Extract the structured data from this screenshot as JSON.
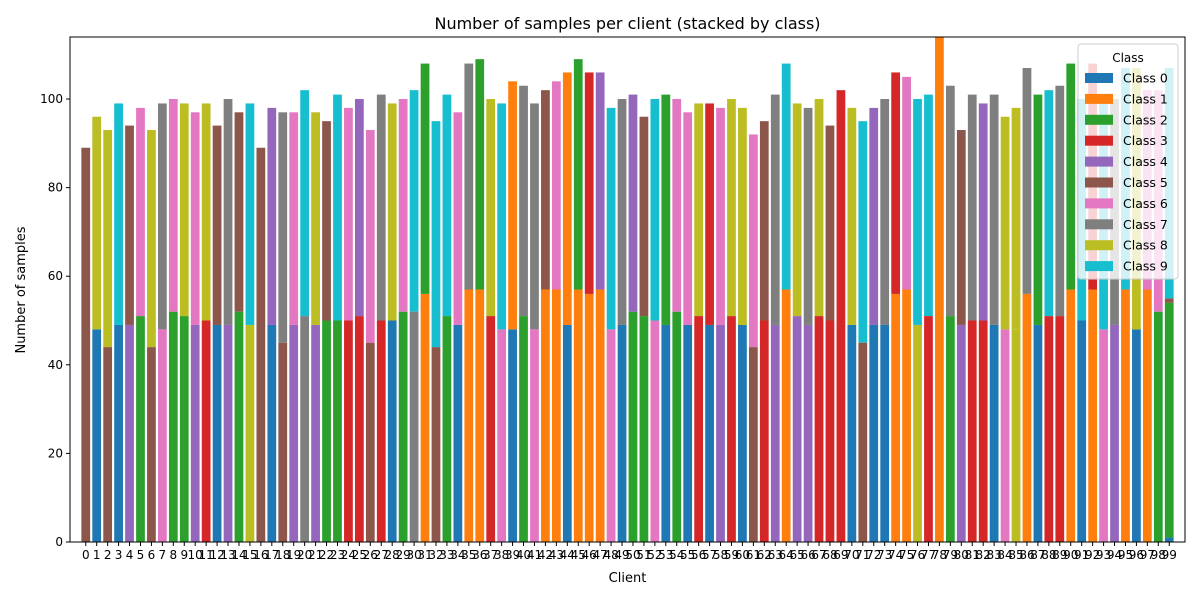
{
  "chart_data": {
    "type": "bar",
    "stacked": true,
    "title": "Number of samples per client (stacked by class)",
    "xlabel": "Client",
    "ylabel": "Number of samples",
    "ylim": [
      0,
      114
    ],
    "yticks": [
      0,
      20,
      40,
      60,
      80,
      100
    ],
    "grid": false,
    "legend": {
      "title": "Class",
      "placement": "top-right"
    },
    "categories": [
      "0",
      "1",
      "2",
      "3",
      "4",
      "5",
      "6",
      "7",
      "8",
      "9",
      "10",
      "11",
      "12",
      "13",
      "14",
      "15",
      "16",
      "17",
      "18",
      "19",
      "20",
      "21",
      "22",
      "23",
      "24",
      "25",
      "26",
      "27",
      "28",
      "29",
      "30",
      "31",
      "32",
      "33",
      "34",
      "35",
      "36",
      "37",
      "38",
      "39",
      "40",
      "41",
      "42",
      "43",
      "44",
      "45",
      "46",
      "47",
      "48",
      "49",
      "50",
      "51",
      "52",
      "53",
      "54",
      "55",
      "56",
      "57",
      "58",
      "59",
      "60",
      "61",
      "62",
      "63",
      "64",
      "65",
      "66",
      "67",
      "68",
      "69",
      "70",
      "71",
      "72",
      "73",
      "74",
      "75",
      "76",
      "77",
      "78",
      "79",
      "80",
      "81",
      "82",
      "83",
      "84",
      "85",
      "86",
      "87",
      "88",
      "89",
      "90",
      "91",
      "92",
      "93",
      "94",
      "95",
      "96",
      "97",
      "98",
      "99"
    ],
    "classes": [
      {
        "name": "Class 0",
        "color": "#1f77b4"
      },
      {
        "name": "Class 1",
        "color": "#ff7f0e"
      },
      {
        "name": "Class 2",
        "color": "#2ca02c"
      },
      {
        "name": "Class 3",
        "color": "#d62728"
      },
      {
        "name": "Class 4",
        "color": "#9467bd"
      },
      {
        "name": "Class 5",
        "color": "#8c564b"
      },
      {
        "name": "Class 6",
        "color": "#e377c2"
      },
      {
        "name": "Class 7",
        "color": "#7f7f7f"
      },
      {
        "name": "Class 8",
        "color": "#bcbd22"
      },
      {
        "name": "Class 9",
        "color": "#17becf"
      }
    ],
    "bars": [
      [
        [
          5,
          89
        ]
      ],
      [
        [
          0,
          48
        ],
        [
          8,
          48
        ]
      ],
      [
        [
          5,
          44
        ],
        [
          8,
          49
        ]
      ],
      [
        [
          0,
          49
        ],
        [
          9,
          50
        ]
      ],
      [
        [
          4,
          49
        ],
        [
          5,
          45
        ]
      ],
      [
        [
          2,
          51
        ],
        [
          6,
          47
        ]
      ],
      [
        [
          5,
          44
        ],
        [
          8,
          49
        ]
      ],
      [
        [
          6,
          48
        ],
        [
          7,
          51
        ]
      ],
      [
        [
          2,
          52
        ],
        [
          6,
          48
        ]
      ],
      [
        [
          2,
          51
        ],
        [
          8,
          48
        ]
      ],
      [
        [
          4,
          49
        ],
        [
          6,
          48
        ]
      ],
      [
        [
          3,
          50
        ],
        [
          8,
          49
        ]
      ],
      [
        [
          0,
          49
        ],
        [
          5,
          45
        ]
      ],
      [
        [
          4,
          49
        ],
        [
          7,
          51
        ]
      ],
      [
        [
          2,
          52
        ],
        [
          5,
          45
        ]
      ],
      [
        [
          8,
          49
        ],
        [
          9,
          50
        ]
      ],
      [
        [
          5,
          89
        ]
      ],
      [
        [
          0,
          49
        ],
        [
          4,
          49
        ]
      ],
      [
        [
          5,
          45
        ],
        [
          7,
          52
        ]
      ],
      [
        [
          4,
          49
        ],
        [
          6,
          48
        ]
      ],
      [
        [
          7,
          51
        ],
        [
          9,
          51
        ]
      ],
      [
        [
          4,
          49
        ],
        [
          8,
          48
        ]
      ],
      [
        [
          2,
          50
        ],
        [
          5,
          45
        ]
      ],
      [
        [
          2,
          50
        ],
        [
          9,
          51
        ]
      ],
      [
        [
          3,
          50
        ],
        [
          6,
          48
        ]
      ],
      [
        [
          3,
          51
        ],
        [
          4,
          49
        ]
      ],
      [
        [
          5,
          45
        ],
        [
          6,
          48
        ]
      ],
      [
        [
          3,
          50
        ],
        [
          7,
          51
        ]
      ],
      [
        [
          0,
          50
        ],
        [
          8,
          49
        ]
      ],
      [
        [
          2,
          52
        ],
        [
          6,
          48
        ]
      ],
      [
        [
          7,
          52
        ],
        [
          9,
          50
        ]
      ],
      [
        [
          1,
          56
        ],
        [
          2,
          52
        ]
      ],
      [
        [
          5,
          44
        ],
        [
          9,
          51
        ]
      ],
      [
        [
          2,
          51
        ],
        [
          9,
          50
        ]
      ],
      [
        [
          0,
          49
        ],
        [
          6,
          48
        ]
      ],
      [
        [
          1,
          57
        ],
        [
          7,
          51
        ]
      ],
      [
        [
          1,
          57
        ],
        [
          2,
          52
        ]
      ],
      [
        [
          3,
          51
        ],
        [
          8,
          49
        ]
      ],
      [
        [
          6,
          48
        ],
        [
          9,
          51
        ]
      ],
      [
        [
          0,
          48
        ],
        [
          1,
          56
        ]
      ],
      [
        [
          2,
          51
        ],
        [
          7,
          52
        ]
      ],
      [
        [
          6,
          48
        ],
        [
          7,
          51
        ]
      ],
      [
        [
          1,
          57
        ],
        [
          5,
          45
        ]
      ],
      [
        [
          1,
          57
        ],
        [
          6,
          47
        ]
      ],
      [
        [
          0,
          49
        ],
        [
          1,
          57
        ]
      ],
      [
        [
          1,
          57
        ],
        [
          2,
          52
        ]
      ],
      [
        [
          1,
          56
        ],
        [
          3,
          50
        ]
      ],
      [
        [
          1,
          57
        ],
        [
          4,
          49
        ]
      ],
      [
        [
          6,
          48
        ],
        [
          9,
          50
        ]
      ],
      [
        [
          0,
          49
        ],
        [
          7,
          51
        ]
      ],
      [
        [
          2,
          52
        ],
        [
          4,
          49
        ]
      ],
      [
        [
          2,
          51
        ],
        [
          5,
          45
        ]
      ],
      [
        [
          6,
          50
        ],
        [
          9,
          50
        ]
      ],
      [
        [
          0,
          49
        ],
        [
          2,
          52
        ]
      ],
      [
        [
          2,
          52
        ],
        [
          6,
          48
        ]
      ],
      [
        [
          0,
          49
        ],
        [
          6,
          48
        ]
      ],
      [
        [
          3,
          51
        ],
        [
          8,
          48
        ]
      ],
      [
        [
          0,
          49
        ],
        [
          3,
          50
        ]
      ],
      [
        [
          4,
          49
        ],
        [
          6,
          49
        ]
      ],
      [
        [
          3,
          51
        ],
        [
          8,
          49
        ]
      ],
      [
        [
          0,
          49
        ],
        [
          8,
          49
        ]
      ],
      [
        [
          5,
          44
        ],
        [
          6,
          48
        ]
      ],
      [
        [
          3,
          50
        ],
        [
          5,
          45
        ]
      ],
      [
        [
          4,
          49
        ],
        [
          7,
          52
        ]
      ],
      [
        [
          1,
          57
        ],
        [
          9,
          51
        ]
      ],
      [
        [
          4,
          51
        ],
        [
          8,
          48
        ]
      ],
      [
        [
          4,
          49
        ],
        [
          7,
          49
        ]
      ],
      [
        [
          3,
          51
        ],
        [
          8,
          49
        ]
      ],
      [
        [
          3,
          50
        ],
        [
          5,
          44
        ]
      ],
      [
        [
          3,
          50
        ],
        [
          3,
          52
        ]
      ],
      [
        [
          0,
          49
        ],
        [
          8,
          49
        ]
      ],
      [
        [
          5,
          45
        ],
        [
          9,
          50
        ]
      ],
      [
        [
          0,
          49
        ],
        [
          4,
          49
        ]
      ],
      [
        [
          0,
          49
        ],
        [
          7,
          51
        ]
      ],
      [
        [
          1,
          56
        ],
        [
          3,
          50
        ]
      ],
      [
        [
          1,
          57
        ],
        [
          6,
          48
        ]
      ],
      [
        [
          8,
          49
        ],
        [
          9,
          51
        ]
      ],
      [
        [
          3,
          51
        ],
        [
          9,
          50
        ]
      ],
      [
        [
          1,
          114
        ]
      ],
      [
        [
          2,
          51
        ],
        [
          7,
          52
        ]
      ],
      [
        [
          4,
          49
        ],
        [
          5,
          44
        ]
      ],
      [
        [
          3,
          50
        ],
        [
          7,
          51
        ]
      ],
      [
        [
          3,
          50
        ],
        [
          4,
          49
        ]
      ],
      [
        [
          0,
          49
        ],
        [
          7,
          52
        ]
      ],
      [
        [
          6,
          48
        ],
        [
          8,
          48
        ]
      ],
      [
        [
          8,
          48
        ],
        [
          8,
          50
        ]
      ],
      [
        [
          1,
          56
        ],
        [
          7,
          51
        ]
      ],
      [
        [
          0,
          49
        ],
        [
          2,
          52
        ]
      ],
      [
        [
          3,
          51
        ],
        [
          9,
          51
        ]
      ],
      [
        [
          3,
          51
        ],
        [
          7,
          52
        ]
      ],
      [
        [
          1,
          57
        ],
        [
          2,
          51
        ]
      ],
      [
        [
          0,
          50
        ],
        [
          9,
          50
        ]
      ],
      [
        [
          1,
          57
        ],
        [
          3,
          51
        ]
      ],
      [
        [
          6,
          48
        ],
        [
          9,
          51
        ]
      ],
      [
        [
          4,
          49
        ],
        [
          7,
          51
        ]
      ],
      [
        [
          1,
          57
        ],
        [
          9,
          50
        ]
      ],
      [
        [
          0,
          48
        ],
        [
          8,
          59
        ]
      ],
      [
        [
          1,
          57
        ],
        [
          6,
          45
        ]
      ],
      [
        [
          2,
          52
        ],
        [
          6,
          50
        ]
      ],
      [
        [
          0,
          1
        ],
        [
          2,
          53
        ],
        [
          5,
          1
        ],
        [
          9,
          52
        ]
      ]
    ]
  }
}
